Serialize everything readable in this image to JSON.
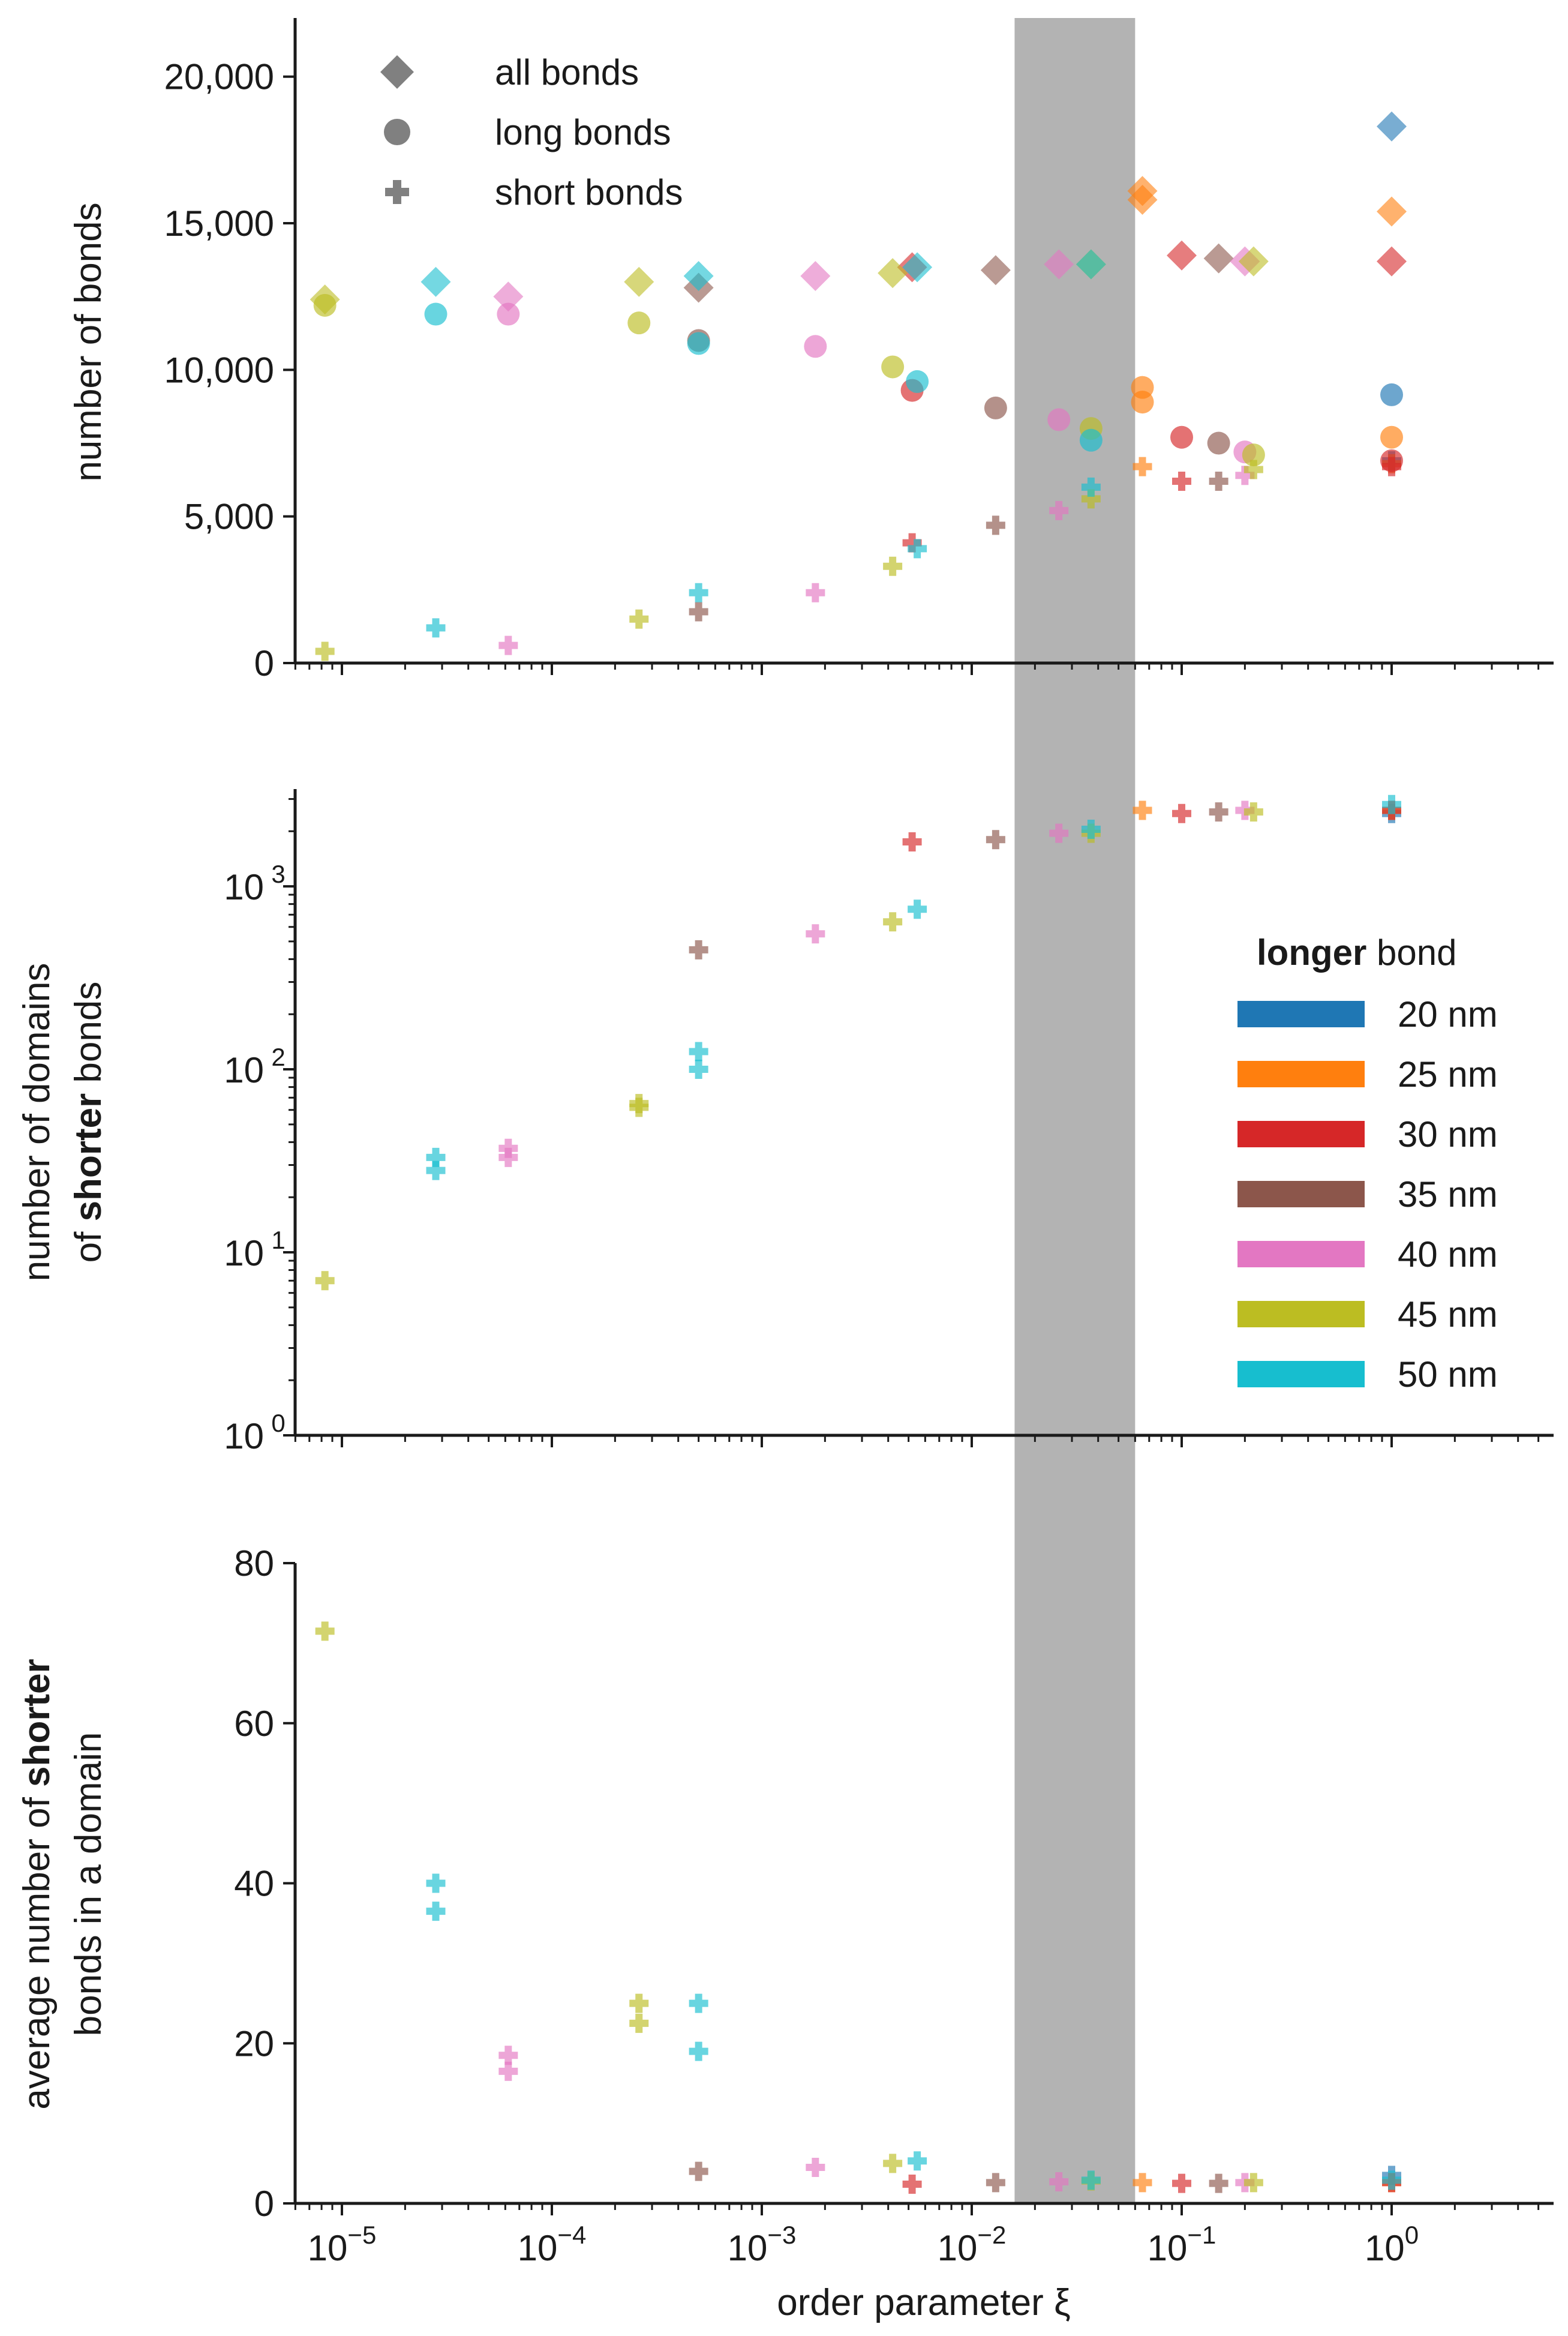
{
  "chart_data": [
    {
      "type": "scatter",
      "panel": "top",
      "xscale": "log",
      "xlim": [
        5e-06,
        5
      ],
      "ylim": [
        0,
        22000
      ],
      "ylabel": "number of bonds",
      "yticks": [
        {
          "value": 0,
          "label": "0"
        },
        {
          "value": 5000,
          "label": "5,000"
        },
        {
          "value": 10000,
          "label": "10,000"
        },
        {
          "value": 15000,
          "label": "15,000"
        },
        {
          "value": 20000,
          "label": "20,000"
        }
      ],
      "marker_legend": [
        {
          "marker": "diamond",
          "label": "all bonds"
        },
        {
          "marker": "circle",
          "label": "long bonds"
        },
        {
          "marker": "plus",
          "label": "short bonds"
        }
      ],
      "series": [
        {
          "name": "20 nm",
          "color": "#1f77b4",
          "all": [
            [
              1.0,
              18300
            ]
          ],
          "long": [
            [
              1.0,
              9150
            ]
          ],
          "short": [
            [
              1.0,
              6900
            ]
          ]
        },
        {
          "name": "25 nm",
          "color": "#ff7f0e",
          "all": [
            [
              0.065,
              16100
            ],
            [
              0.065,
              15800
            ],
            [
              1.0,
              15400
            ]
          ],
          "long": [
            [
              0.065,
              9400
            ],
            [
              0.065,
              8900
            ],
            [
              1.0,
              7700
            ]
          ],
          "short": [
            [
              0.065,
              6700
            ],
            [
              1.0,
              6800
            ]
          ]
        },
        {
          "name": "30 nm",
          "color": "#d62728",
          "all": [
            [
              0.0052,
              13500
            ],
            [
              0.1,
              13900
            ],
            [
              1.0,
              13700
            ]
          ],
          "long": [
            [
              0.0052,
              9300
            ],
            [
              0.1,
              7700
            ],
            [
              1.0,
              6900
            ]
          ],
          "short": [
            [
              0.0052,
              4100
            ],
            [
              0.1,
              6200
            ],
            [
              1.0,
              6700
            ]
          ]
        },
        {
          "name": "35 nm",
          "color": "#8c564b",
          "all": [
            [
              0.0005,
              12800
            ],
            [
              0.013,
              13400
            ],
            [
              0.15,
              13800
            ]
          ],
          "long": [
            [
              0.0005,
              11000
            ],
            [
              0.013,
              8700
            ],
            [
              0.15,
              7500
            ]
          ],
          "short": [
            [
              0.0005,
              1750
            ],
            [
              0.013,
              4700
            ],
            [
              0.15,
              6200
            ]
          ]
        },
        {
          "name": "40 nm",
          "color": "#e377c2",
          "all": [
            [
              6.2e-05,
              12500
            ],
            [
              0.0018,
              13200
            ],
            [
              0.026,
              13600
            ],
            [
              0.2,
              13700
            ]
          ],
          "long": [
            [
              6.2e-05,
              11900
            ],
            [
              0.0018,
              10800
            ],
            [
              0.026,
              8300
            ],
            [
              0.2,
              7200
            ]
          ],
          "short": [
            [
              6.2e-05,
              600
            ],
            [
              0.0018,
              2400
            ],
            [
              0.026,
              5200
            ],
            [
              0.2,
              6400
            ]
          ]
        },
        {
          "name": "45 nm",
          "color": "#bcbd22",
          "all": [
            [
              8.3e-06,
              12400
            ],
            [
              0.00026,
              13000
            ],
            [
              0.0042,
              13300
            ],
            [
              0.037,
              13600
            ],
            [
              0.22,
              13700
            ]
          ],
          "long": [
            [
              8.3e-06,
              12200
            ],
            [
              0.00026,
              11600
            ],
            [
              0.0042,
              10100
            ],
            [
              0.037,
              8000
            ],
            [
              0.22,
              7100
            ]
          ],
          "short": [
            [
              8.3e-06,
              400
            ],
            [
              0.00026,
              1500
            ],
            [
              0.0042,
              3300
            ],
            [
              0.037,
              5600
            ],
            [
              0.22,
              6600
            ]
          ]
        },
        {
          "name": "50 nm",
          "color": "#17becf",
          "all": [
            [
              2.8e-05,
              13000
            ],
            [
              0.0005,
              13200
            ],
            [
              0.0055,
              13500
            ],
            [
              0.037,
              13600
            ]
          ],
          "long": [
            [
              2.8e-05,
              11900
            ],
            [
              0.0005,
              10900
            ],
            [
              0.0055,
              9600
            ],
            [
              0.037,
              7600
            ]
          ],
          "short": [
            [
              2.8e-05,
              1200
            ],
            [
              0.0005,
              2400
            ],
            [
              0.0055,
              3900
            ],
            [
              0.037,
              6000
            ]
          ]
        }
      ]
    },
    {
      "type": "scatter",
      "panel": "middle",
      "xscale": "log",
      "yscale": "log",
      "xlim": [
        5e-06,
        5
      ],
      "ylim": [
        1,
        3400
      ],
      "ylabel_parts": [
        "number of domains",
        "of ",
        "shorter",
        " bonds"
      ],
      "yticks": [
        {
          "value": 1,
          "base": "10",
          "exp": "0"
        },
        {
          "value": 10,
          "base": "10",
          "exp": "1"
        },
        {
          "value": 100,
          "base": "10",
          "exp": "2"
        },
        {
          "value": 1000,
          "base": "10",
          "exp": "3"
        }
      ],
      "series": [
        {
          "name": "20 nm",
          "color": "#1f77b4",
          "points": [
            [
              1.0,
              2500
            ]
          ]
        },
        {
          "name": "25 nm",
          "color": "#ff7f0e",
          "points": [
            [
              0.065,
              2600
            ],
            [
              1.0,
              2600
            ]
          ]
        },
        {
          "name": "30 nm",
          "color": "#d62728",
          "points": [
            [
              0.0052,
              1750
            ],
            [
              0.1,
              2500
            ],
            [
              1.0,
              2600
            ]
          ]
        },
        {
          "name": "35 nm",
          "color": "#8c564b",
          "points": [
            [
              0.0005,
              450
            ],
            [
              0.013,
              1800
            ],
            [
              0.15,
              2550
            ]
          ]
        },
        {
          "name": "40 nm",
          "color": "#e377c2",
          "points": [
            [
              6.2e-05,
              37
            ],
            [
              6.2e-05,
              33
            ],
            [
              0.0018,
              550
            ],
            [
              0.026,
              1950
            ],
            [
              0.2,
              2600
            ]
          ]
        },
        {
          "name": "45 nm",
          "color": "#bcbd22",
          "points": [
            [
              8.3e-06,
              7
            ],
            [
              0.00026,
              65
            ],
            [
              0.00026,
              62
            ],
            [
              0.0042,
              640
            ],
            [
              0.037,
              1950
            ],
            [
              0.22,
              2550
            ]
          ]
        },
        {
          "name": "50 nm",
          "color": "#17becf",
          "points": [
            [
              2.8e-05,
              33
            ],
            [
              2.8e-05,
              28
            ],
            [
              0.0005,
              125
            ],
            [
              0.0005,
              100
            ],
            [
              0.0055,
              750
            ],
            [
              0.037,
              2050
            ],
            [
              1.0,
              2800
            ]
          ]
        }
      ]
    },
    {
      "type": "scatter",
      "panel": "bottom",
      "xscale": "log",
      "xlim": [
        5e-06,
        5
      ],
      "ylim": [
        0,
        80
      ],
      "xlabel": "order parameter ξ",
      "ylabel_parts": [
        "average number of ",
        "shorter",
        "bonds in a domain"
      ],
      "yticks": [
        {
          "value": 0,
          "label": "0"
        },
        {
          "value": 20,
          "label": "20"
        },
        {
          "value": 40,
          "label": "40"
        },
        {
          "value": 60,
          "label": "60"
        },
        {
          "value": 80,
          "label": "80"
        }
      ],
      "xticks": [
        {
          "value": 1e-05,
          "base": "10",
          "exp": "−5"
        },
        {
          "value": 0.0001,
          "base": "10",
          "exp": "−4"
        },
        {
          "value": 0.001,
          "base": "10",
          "exp": "−3"
        },
        {
          "value": 0.01,
          "base": "10",
          "exp": "−2"
        },
        {
          "value": 0.1,
          "base": "10",
          "exp": "−1"
        },
        {
          "value": 1,
          "base": "10",
          "exp": "0"
        }
      ],
      "series": [
        {
          "name": "20 nm",
          "color": "#1f77b4",
          "points": [
            [
              1.0,
              3.5
            ]
          ]
        },
        {
          "name": "25 nm",
          "color": "#ff7f0e",
          "points": [
            [
              0.065,
              2.6
            ],
            [
              1.0,
              2.6
            ]
          ]
        },
        {
          "name": "30 nm",
          "color": "#d62728",
          "points": [
            [
              0.0052,
              2.4
            ],
            [
              0.1,
              2.5
            ],
            [
              1.0,
              2.6
            ]
          ]
        },
        {
          "name": "35 nm",
          "color": "#8c564b",
          "points": [
            [
              0.0005,
              4
            ],
            [
              0.013,
              2.6
            ],
            [
              0.15,
              2.5
            ]
          ]
        },
        {
          "name": "40 nm",
          "color": "#e377c2",
          "points": [
            [
              6.2e-05,
              18.5
            ],
            [
              6.2e-05,
              16.5
            ],
            [
              0.0018,
              4.5
            ],
            [
              0.026,
              2.7
            ],
            [
              0.2,
              2.6
            ]
          ]
        },
        {
          "name": "45 nm",
          "color": "#bcbd22",
          "points": [
            [
              8.3e-06,
              71.5
            ],
            [
              0.00026,
              25
            ],
            [
              0.00026,
              22.5
            ],
            [
              0.0042,
              5
            ],
            [
              0.037,
              2.8
            ],
            [
              0.22,
              2.6
            ]
          ]
        },
        {
          "name": "50 nm",
          "color": "#17becf",
          "points": [
            [
              2.8e-05,
              40
            ],
            [
              2.8e-05,
              36.5
            ],
            [
              0.0005,
              25
            ],
            [
              0.0005,
              19
            ],
            [
              0.0055,
              5.3
            ],
            [
              0.037,
              2.9
            ],
            [
              1.0,
              2.9
            ]
          ]
        }
      ]
    }
  ],
  "shaded_region": {
    "x_from": 0.016,
    "x_to": 0.06,
    "color": "#b3b3b3"
  },
  "color_legend": {
    "title_bold": "longer",
    "title_rest": " bond",
    "entries": [
      {
        "label": "20 nm",
        "color": "#1f77b4"
      },
      {
        "label": "25 nm",
        "color": "#ff7f0e"
      },
      {
        "label": "30 nm",
        "color": "#d62728"
      },
      {
        "label": "35 nm",
        "color": "#8c564b"
      },
      {
        "label": "40 nm",
        "color": "#e377c2"
      },
      {
        "label": "45 nm",
        "color": "#bcbd22"
      },
      {
        "label": "50 nm",
        "color": "#17becf"
      }
    ]
  },
  "marker_color": "#808080"
}
